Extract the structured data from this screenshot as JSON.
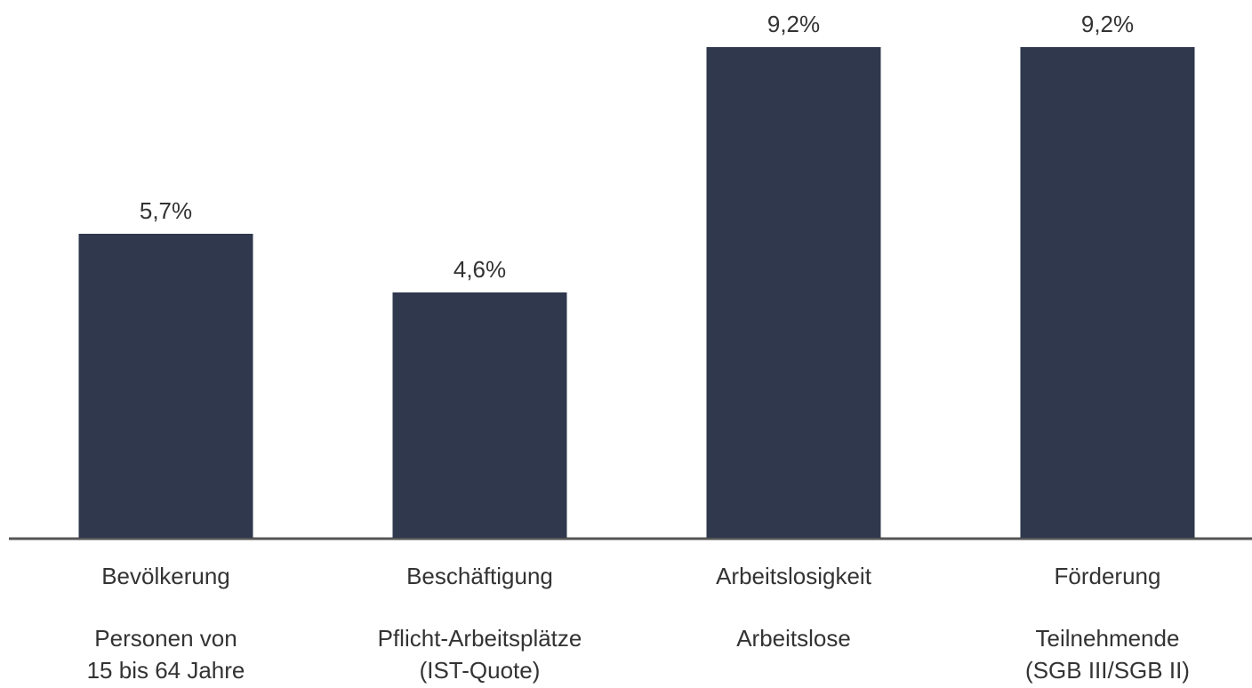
{
  "chart_data": {
    "type": "bar",
    "categories": [
      "Bevölkerung",
      "Beschäftigung",
      "Arbeitslosigkeit",
      "Förderung"
    ],
    "sublabels": [
      [
        "Personen von",
        "15 bis 64 Jahre"
      ],
      [
        "Pflicht-Arbeitsplätze",
        "(IST-Quote)"
      ],
      [
        "Arbeitslose"
      ],
      [
        "Teilnehmende",
        "(SGB III/SGB II)"
      ]
    ],
    "values": [
      5.7,
      4.6,
      9.2,
      9.2
    ],
    "value_labels": [
      "5,7%",
      "4,6%",
      "9,2%",
      "9,2%"
    ],
    "color": "#2f384c"
  }
}
